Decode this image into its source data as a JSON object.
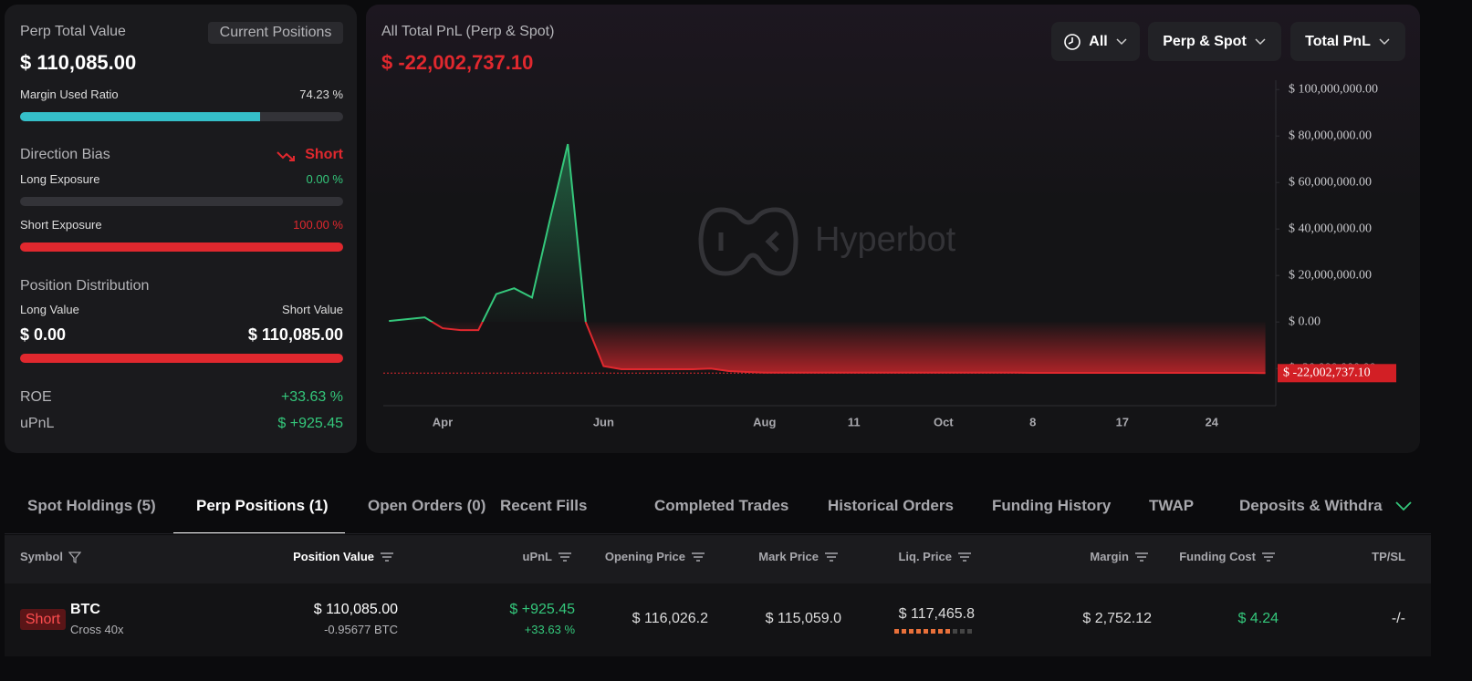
{
  "summary": {
    "perp_total_value": {
      "label": "Perp Total Value",
      "value": "$ 110,085.00"
    },
    "current_positions_button": "Current Positions",
    "margin_used_ratio": {
      "label": "Margin Used Ratio",
      "value": 74.23,
      "value_label": "74.23 %"
    },
    "direction_bias": {
      "label": "Direction Bias",
      "value": "Short"
    },
    "long_exposure": {
      "label": "Long Exposure",
      "value": 0,
      "value_label": "0.00 %"
    },
    "short_exposure": {
      "label": "Short Exposure",
      "value": 100,
      "value_label": "100.00 %"
    },
    "position_distribution": {
      "label": "Position Distribution",
      "long_label": "Long Value",
      "short_label": "Short Value",
      "long_value": 0,
      "long_value_label": "$ 0.00",
      "short_value": 110085,
      "short_value_label": "$ 110,085.00"
    },
    "roe": {
      "label": "ROE",
      "value": "+33.63 %"
    },
    "upnl": {
      "label": "uPnL",
      "value": "$ +925.45"
    }
  },
  "chart_data": {
    "type": "line",
    "title": "All Total PnL (Perp & Spot)",
    "total": "$ -22,002,737.10",
    "filters": [
      "All",
      "Perp & Spot",
      "Total PnL"
    ],
    "watermark": "Hyperbot",
    "categories": [
      null,
      null,
      null,
      "Apr",
      null,
      null,
      null,
      null,
      null,
      null,
      null,
      null,
      "Jun",
      null,
      null,
      null,
      null,
      null,
      null,
      null,
      null,
      "Aug",
      null,
      null,
      null,
      null,
      "11",
      null,
      null,
      null,
      null,
      "Oct",
      null,
      null,
      null,
      null,
      "8",
      null,
      null,
      null,
      null,
      "17",
      null,
      null,
      null,
      null,
      "24",
      null,
      null,
      null
    ],
    "series": [
      {
        "colors": {
          "positive": "#34c77b",
          "negative": "#e0282e"
        },
        "values": [
          400000,
          1200000,
          2000000,
          -2700000,
          -3500000,
          -3500000,
          12000000,
          14500000,
          10500000,
          44000000,
          76500000,
          0,
          -19000000,
          -20300000,
          -20300000,
          -20300000,
          -20300000,
          -20300000,
          -20000000,
          -21100000,
          -21500000,
          -21800000,
          -21800000,
          -21800000,
          -21800000,
          -21800000,
          -21800000,
          -21800000,
          -21800000,
          -21800000,
          -21800000,
          -21800000,
          -21800000,
          -21800000,
          -21800000,
          -21800000,
          -21900000,
          -21900000,
          -21900000,
          -21900000,
          -21900000,
          -21900000,
          -21900000,
          -21900000,
          -21900000,
          -21900000,
          -21900000,
          -21900000,
          -21900000,
          -22002737.1
        ],
        "value_labels": [
          null,
          null,
          null,
          null,
          null,
          null,
          null,
          null,
          null,
          null,
          null,
          null,
          null,
          null,
          null,
          null,
          null,
          null,
          null,
          null,
          null,
          null,
          null,
          null,
          null,
          null,
          null,
          null,
          null,
          null,
          null,
          null,
          null,
          null,
          null,
          null,
          null,
          null,
          null,
          null,
          null,
          null,
          null,
          null,
          null,
          null,
          null,
          null,
          null,
          "$ -22,002,737.10"
        ]
      }
    ],
    "ylim": [
      -36000000,
      104000000
    ],
    "yticks": [
      {
        "value": 100000000,
        "label": "$ 100,000,000.00"
      },
      {
        "value": 80000000,
        "label": "$ 80,000,000.00"
      },
      {
        "value": 60000000,
        "label": "$ 60,000,000.00"
      },
      {
        "value": 40000000,
        "label": "$ 40,000,000.00"
      },
      {
        "value": 20000000,
        "label": "$ 20,000,000.00"
      },
      {
        "value": 0,
        "label": "$ 0.00"
      },
      {
        "value": -20000000,
        "label": "$ -20,000,000.00"
      }
    ],
    "grid": false
  },
  "tabs": {
    "items": [
      "Spot Holdings (5)",
      "Perp Positions (1)",
      "Open Orders (0)",
      "Recent Fills",
      "Completed Trades",
      "Historical Orders",
      "Funding History",
      "TWAP",
      "Deposits & Withdraw"
    ],
    "active": 1
  },
  "table": {
    "columns": [
      "Symbol",
      "Position Value",
      "uPnL",
      "Opening Price",
      "Mark Price",
      "Liq. Price",
      "Margin",
      "Funding Cost",
      "TP/SL"
    ],
    "rows": [
      {
        "side": "Short",
        "symbol": "BTC",
        "margin_mode": "Cross 40x",
        "position_value": "$ 110,085.00",
        "size": "-0.95677 BTC",
        "upnl": "$ +925.45",
        "roe": "+33.63 %",
        "opening_price": "$ 116,026.2",
        "mark_price": "$ 115,059.0",
        "liq_price": "$ 117,465.8",
        "margin": "$ 2,752.12",
        "funding_cost": "$ 4.24",
        "tp_sl": "-/-"
      }
    ]
  }
}
